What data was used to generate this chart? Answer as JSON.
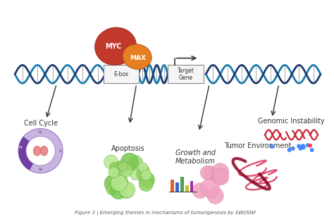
{
  "background_color": "#ffffff",
  "dna_color_blue": "#1a7aad",
  "dna_color_dark": "#1a3a6e",
  "myc_color": "#c0392b",
  "max_color": "#e67e22",
  "ebox_color": "#f5f5f5",
  "ebox_border": "#888888",
  "arrow_color": "#333333",
  "cell_cycle_label": "Cell Cycle",
  "apoptosis_label": "Apoptosis",
  "growth_label": "Growth and\nMetabolism",
  "tumor_label": "Tumor Environment",
  "genomic_label": "Genomic Instability",
  "ebox_text": "E-box",
  "target_gene_text": "Target\nGene",
  "myc_text": "MYC",
  "max_text": "MAX",
  "caption": "Figure 3 | Emerging themes in mechanisms of tumorigenesis by SWI/SNF",
  "label_fontsize": 7,
  "caption_fontsize": 5
}
